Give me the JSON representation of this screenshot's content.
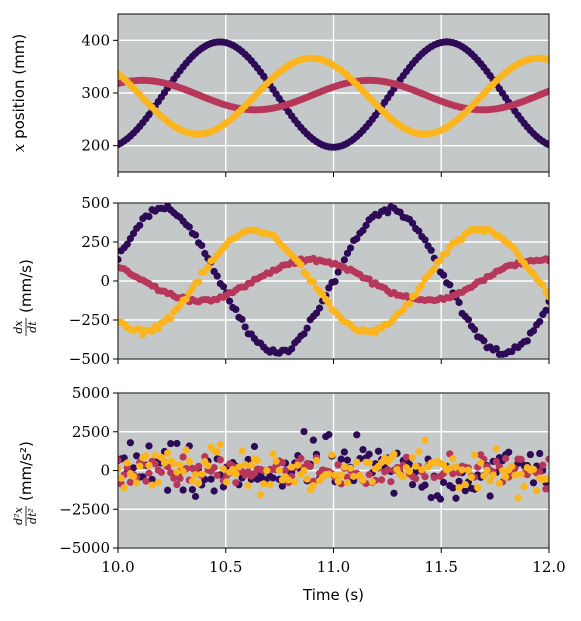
{
  "colors": {
    "plot_bg": "#c5c8c8",
    "grid": "#ffffff",
    "series_dark": "#2d0b57",
    "series_red": "#b7375a",
    "series_yellow": "#fbb51e"
  },
  "chart_data": [
    {
      "type": "scatter",
      "ylabel_math": "x",
      "ylabel_text": " position (mm)",
      "xlim": [
        10.0,
        12.0
      ],
      "ylim": [
        150,
        450
      ],
      "yticks": [
        200,
        300,
        400
      ],
      "ytick_labels": [
        "200",
        "300",
        "400"
      ],
      "grid": true,
      "series": [
        {
          "color": "#2d0b57",
          "model": {
            "kind": "sin",
            "A": 100,
            "f": 0.95,
            "phase": -1.25,
            "offset": 297,
            "noise": 0
          }
        },
        {
          "color": "#b7375a",
          "model": {
            "kind": "sin",
            "A": 28,
            "f": 0.95,
            "phase": 0.9,
            "offset": 296,
            "noise": 0
          }
        },
        {
          "color": "#fbb51e",
          "model": {
            "kind": "sin",
            "A": 72,
            "f": 0.95,
            "phase": 2.5,
            "offset": 294,
            "noise": 0
          }
        }
      ]
    },
    {
      "type": "scatter",
      "ylabel_frac_num": "dx",
      "ylabel_frac_den": "dt",
      "ylabel_unit": "(mm/s)",
      "xlim": [
        10.0,
        12.0
      ],
      "ylim": [
        -500,
        500
      ],
      "yticks": [
        -500,
        -250,
        0,
        250,
        500
      ],
      "ytick_labels": [
        "−500",
        "−250",
        "0",
        "250",
        "500"
      ],
      "grid": true,
      "series": [
        {
          "color": "#2d0b57",
          "model": {
            "kind": "cos",
            "A": 460,
            "f": 0.95,
            "phase": -1.25,
            "offset": 0,
            "noise": 18
          }
        },
        {
          "color": "#b7375a",
          "model": {
            "kind": "cos",
            "A": 130,
            "f": 0.95,
            "phase": 0.9,
            "offset": 5,
            "noise": 10
          }
        },
        {
          "color": "#fbb51e",
          "model": {
            "kind": "cos",
            "A": 325,
            "f": 0.95,
            "phase": 2.5,
            "offset": 0,
            "noise": 14
          }
        }
      ]
    },
    {
      "type": "scatter",
      "ylabel_frac_num": "d²x",
      "ylabel_frac_den": "dt²",
      "ylabel_unit": "(mm/s²)",
      "xlim": [
        10.0,
        12.0
      ],
      "ylim": [
        -5000,
        5000
      ],
      "yticks": [
        -5000,
        -2500,
        0,
        2500,
        5000
      ],
      "ytick_labels": [
        "−5000",
        "−2500",
        "0",
        "2500",
        "5000"
      ],
      "grid": true,
      "series": [
        {
          "color": "#2d0b57",
          "model": {
            "kind": "msin",
            "A": 500,
            "f": 0.95,
            "phase": -1.25,
            "offset": 0,
            "noise": 1500
          }
        },
        {
          "color": "#b7375a",
          "model": {
            "kind": "msin",
            "A": 150,
            "f": 0.95,
            "phase": 0.9,
            "offset": 0,
            "noise": 800
          }
        },
        {
          "color": "#fbb51e",
          "model": {
            "kind": "msin",
            "A": 350,
            "f": 0.95,
            "phase": 2.5,
            "offset": 0,
            "noise": 1100
          }
        }
      ]
    }
  ],
  "xaxis": {
    "xticks": [
      10.0,
      10.5,
      11.0,
      11.5,
      12.0
    ],
    "xtick_labels": [
      "10.0",
      "10.5",
      "11.0",
      "11.5",
      "12.0"
    ],
    "xlabel": "Time (s)"
  },
  "sample_count": 140
}
